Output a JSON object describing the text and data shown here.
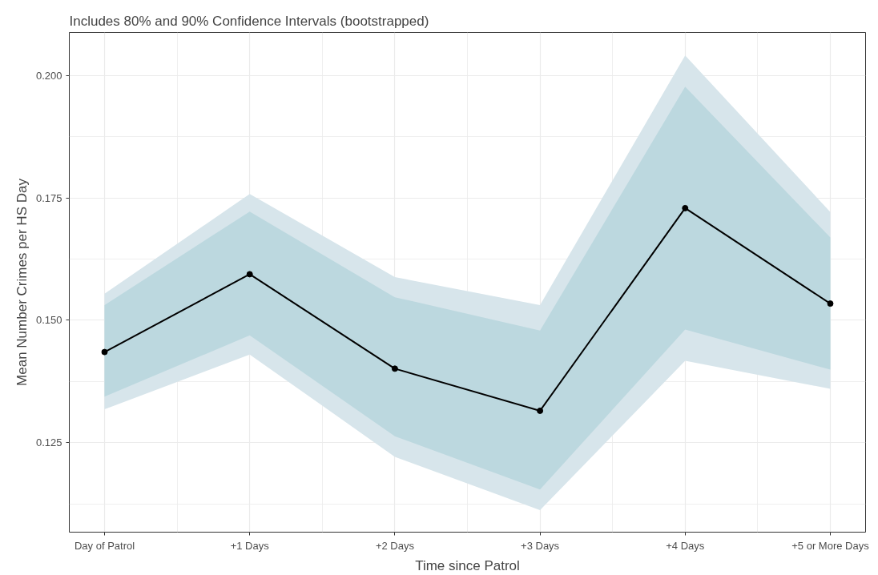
{
  "chart_data": {
    "type": "line",
    "title": "Includes 80% and 90% Confidence Intervals (bootstrapped)",
    "xlabel": "Time since Patrol",
    "ylabel": "Mean Number Crimes per HS Day",
    "categories": [
      "Day of Patrol",
      "+1 Days",
      "+2 Days",
      "+3 Days",
      "+4 Days",
      "+5 or More Days"
    ],
    "series": [
      {
        "type": "area",
        "color": "#d7e5eb",
        "values": [
          null,
          null,
          null,
          null,
          null,
          null
        ],
        "lower": [
          0.1318,
          0.143,
          0.1221,
          0.1112,
          0.1417,
          0.136
        ],
        "upper": [
          0.1554,
          0.1758,
          0.1588,
          0.1531,
          0.2041,
          0.1721
        ]
      },
      {
        "type": "area",
        "color": "#bcd8df",
        "values": [
          null,
          null,
          null,
          null,
          null,
          null
        ],
        "lower": [
          0.1344,
          0.1469,
          0.1263,
          0.1154,
          0.1481,
          0.1399
        ],
        "upper": [
          0.1531,
          0.1722,
          0.1547,
          0.1479,
          0.1977,
          0.1669
        ]
      },
      {
        "color": "#000000",
        "values": [
          0.1435,
          0.1594,
          0.1401,
          0.1315,
          0.1729,
          0.1534
        ]
      }
    ],
    "ylim": [
      0.1067,
      0.2088
    ],
    "yticks": [
      {
        "value": 0.125,
        "label": "0.125"
      },
      {
        "value": 0.15,
        "label": "0.150"
      },
      {
        "value": 0.175,
        "label": "0.175"
      },
      {
        "value": 0.2,
        "label": "0.200"
      }
    ],
    "grid": true,
    "legend": false,
    "marker": "circle",
    "line_style": "solid"
  }
}
